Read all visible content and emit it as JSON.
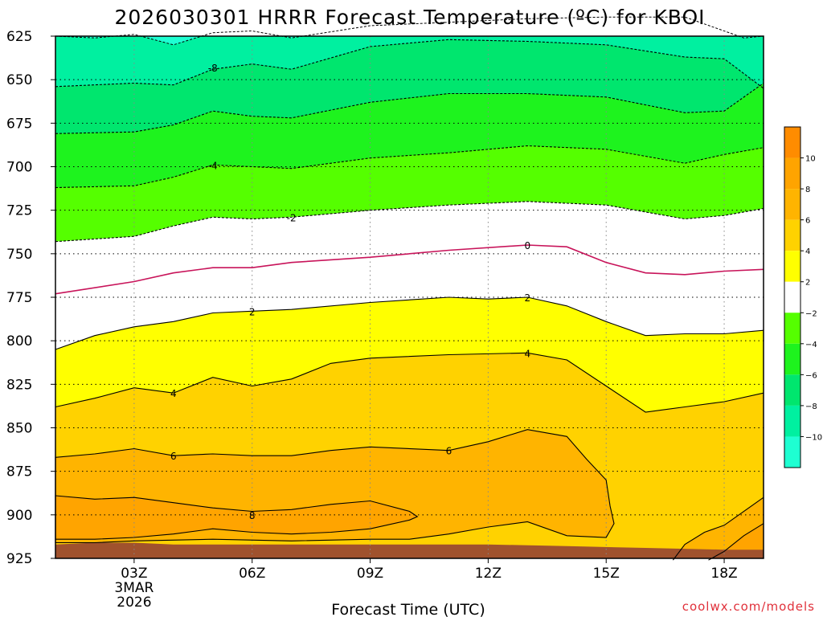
{
  "chart_data": {
    "type": "heatmap",
    "title": "2026030301 HRRR Forecast Temperature (ºC) for KBOI",
    "xlabel": "Forecast Time (UTC)",
    "ylabel": "",
    "x_ticks": [
      {
        "hour": 3,
        "label": "03Z",
        "sub": [
          "3MAR",
          "2026"
        ]
      },
      {
        "hour": 6,
        "label": "06Z"
      },
      {
        "hour": 9,
        "label": "09Z"
      },
      {
        "hour": 12,
        "label": "12Z"
      },
      {
        "hour": 15,
        "label": "15Z"
      },
      {
        "hour": 18,
        "label": "18Z"
      }
    ],
    "xlim": [
      1,
      19
    ],
    "y_ticks": [
      625,
      650,
      675,
      700,
      725,
      750,
      775,
      800,
      825,
      850,
      875,
      900,
      925
    ],
    "ylim": [
      925,
      625
    ],
    "ylog": false,
    "grid": true,
    "colorbar": {
      "ticks": [
        "10",
        "8",
        "6",
        "4",
        "2",
        "-2",
        "-4",
        "-6",
        "-8",
        "-10"
      ],
      "bands": [
        {
          "range": [
            10,
            12
          ],
          "color": "#ff8c00"
        },
        {
          "range": [
            8,
            10
          ],
          "color": "#ffa400"
        },
        {
          "range": [
            6,
            8
          ],
          "color": "#ffb400"
        },
        {
          "range": [
            4,
            6
          ],
          "color": "#ffd200"
        },
        {
          "range": [
            2,
            4
          ],
          "color": "#ffff00"
        },
        {
          "range": [
            -2,
            2
          ],
          "color": "#ffffff"
        },
        {
          "range": [
            -4,
            -2
          ],
          "color": "#55ff00"
        },
        {
          "range": [
            -6,
            -4
          ],
          "color": "#1ef31e"
        },
        {
          "range": [
            -8,
            -6
          ],
          "color": "#00e66e"
        },
        {
          "range": [
            -10,
            -8
          ],
          "color": "#00f0a0"
        },
        {
          "range": [
            -12,
            -10
          ],
          "color": "#1effd2"
        }
      ]
    },
    "terrain_color": "#a0522d",
    "series": [
      {
        "name": "-10",
        "type": "contour",
        "points": [
          [
            1,
            625
          ],
          [
            2,
            626
          ],
          [
            3,
            624
          ],
          [
            4,
            630
          ],
          [
            5,
            623
          ],
          [
            6,
            622
          ],
          [
            7,
            626
          ],
          [
            9,
            619
          ],
          [
            11,
            617
          ],
          [
            13,
            615
          ],
          [
            15,
            614
          ],
          [
            17,
            614
          ],
          [
            18.5,
            626
          ],
          [
            19,
            625
          ]
        ]
      },
      {
        "name": "-8",
        "type": "contour",
        "color": "#000000",
        "dash": true,
        "points": [
          [
            1,
            654
          ],
          [
            3,
            652
          ],
          [
            4,
            653
          ],
          [
            5,
            644
          ],
          [
            6,
            641
          ],
          [
            7,
            644
          ],
          [
            9,
            631
          ],
          [
            11,
            627
          ],
          [
            13,
            628
          ],
          [
            15,
            630
          ],
          [
            17,
            637
          ],
          [
            18,
            638
          ],
          [
            19,
            655
          ]
        ]
      },
      {
        "name": "-6",
        "type": "contour",
        "color": "#000000",
        "dash": true,
        "points": [
          [
            1,
            681
          ],
          [
            3,
            680
          ],
          [
            4,
            676
          ],
          [
            5,
            668
          ],
          [
            6,
            671
          ],
          [
            7,
            672
          ],
          [
            9,
            663
          ],
          [
            11,
            658
          ],
          [
            13,
            658
          ],
          [
            15,
            660
          ],
          [
            17,
            669
          ],
          [
            18,
            668
          ],
          [
            19,
            652
          ]
        ]
      },
      {
        "name": "-4",
        "type": "contour",
        "color": "#000000",
        "dash": true,
        "points": [
          [
            1,
            712
          ],
          [
            3,
            711
          ],
          [
            4,
            706
          ],
          [
            5,
            699
          ],
          [
            6,
            700
          ],
          [
            7,
            701
          ],
          [
            9,
            695
          ],
          [
            11,
            692
          ],
          [
            13,
            688
          ],
          [
            15,
            690
          ],
          [
            17,
            698
          ],
          [
            18,
            693
          ],
          [
            19,
            689
          ]
        ]
      },
      {
        "name": "-2",
        "type": "contour",
        "color": "#000000",
        "dash": true,
        "points": [
          [
            1,
            743
          ],
          [
            3,
            740
          ],
          [
            4,
            734
          ],
          [
            5,
            729
          ],
          [
            6,
            730
          ],
          [
            7,
            729
          ],
          [
            9,
            725
          ],
          [
            11,
            722
          ],
          [
            13,
            720
          ],
          [
            15,
            722
          ],
          [
            17,
            730
          ],
          [
            18,
            728
          ],
          [
            19,
            724
          ]
        ]
      },
      {
        "name": "0",
        "type": "contour",
        "color": "#c8145a",
        "points": [
          [
            1,
            773
          ],
          [
            3,
            766
          ],
          [
            4,
            761
          ],
          [
            5,
            758
          ],
          [
            6,
            758
          ],
          [
            7,
            755
          ],
          [
            9,
            752
          ],
          [
            11,
            748
          ],
          [
            13,
            745
          ],
          [
            14,
            746
          ],
          [
            15,
            755
          ],
          [
            16,
            761
          ],
          [
            17,
            762
          ],
          [
            18,
            760
          ],
          [
            19,
            759
          ]
        ]
      },
      {
        "name": "2",
        "type": "contour",
        "color": "#000000",
        "points": [
          [
            1,
            805
          ],
          [
            2,
            797
          ],
          [
            3,
            792
          ],
          [
            4,
            789
          ],
          [
            5,
            784
          ],
          [
            6,
            783
          ],
          [
            7,
            782
          ],
          [
            9,
            778
          ],
          [
            11,
            775
          ],
          [
            12,
            776
          ],
          [
            13,
            775
          ],
          [
            14,
            780
          ],
          [
            15,
            789
          ],
          [
            16,
            797
          ],
          [
            17,
            796
          ],
          [
            18,
            796
          ],
          [
            19,
            794
          ]
        ]
      },
      {
        "name": "4",
        "type": "contour",
        "color": "#000000",
        "points": [
          [
            1,
            838
          ],
          [
            2,
            833
          ],
          [
            3,
            827
          ],
          [
            4,
            830
          ],
          [
            5,
            821
          ],
          [
            6,
            826
          ],
          [
            7,
            822
          ],
          [
            8,
            813
          ],
          [
            9,
            810
          ],
          [
            11,
            808
          ],
          [
            13,
            807
          ],
          [
            14,
            811
          ],
          [
            15,
            826
          ],
          [
            16,
            841
          ],
          [
            17,
            838
          ],
          [
            18,
            835
          ],
          [
            19,
            830
          ]
        ]
      },
      {
        "name": "6",
        "type": "contour",
        "color": "#000000",
        "points": [
          [
            1,
            867
          ],
          [
            2,
            865
          ],
          [
            3,
            862
          ],
          [
            4,
            866
          ],
          [
            5,
            865
          ],
          [
            6,
            866
          ],
          [
            7,
            866
          ],
          [
            8,
            863
          ],
          [
            9,
            861
          ],
          [
            11,
            863
          ],
          [
            12,
            858
          ],
          [
            13,
            851
          ],
          [
            14,
            855
          ],
          [
            14.5,
            868
          ],
          [
            15,
            880
          ],
          [
            15.1,
            895
          ],
          [
            15.2,
            905
          ],
          [
            15,
            913
          ],
          [
            14,
            912
          ],
          [
            13,
            904
          ],
          [
            12,
            907
          ],
          [
            11,
            911
          ],
          [
            10,
            914
          ],
          [
            9,
            914
          ],
          [
            7,
            915
          ],
          [
            5,
            914
          ],
          [
            3,
            915
          ],
          [
            2,
            916
          ],
          [
            1,
            916
          ]
        ]
      },
      {
        "name": "8",
        "type": "contour",
        "color": "#000000",
        "points": [
          [
            1,
            889
          ],
          [
            2,
            891
          ],
          [
            3,
            890
          ],
          [
            4,
            893
          ],
          [
            5,
            896
          ],
          [
            6,
            898
          ],
          [
            7,
            897
          ],
          [
            8,
            894
          ],
          [
            9,
            892
          ],
          [
            10,
            898
          ],
          [
            10.2,
            901
          ],
          [
            10,
            903
          ],
          [
            9,
            908
          ],
          [
            8,
            910
          ],
          [
            7,
            911
          ],
          [
            6,
            910
          ],
          [
            5,
            908
          ],
          [
            4,
            911
          ],
          [
            3,
            913
          ],
          [
            2,
            914
          ],
          [
            1,
            914
          ]
        ]
      },
      {
        "name": "8 (east)",
        "type": "contour",
        "color": "#000000",
        "points": [
          [
            16.7,
            926
          ],
          [
            17,
            917
          ],
          [
            17.5,
            910
          ],
          [
            18,
            906
          ],
          [
            19,
            890
          ]
        ]
      },
      {
        "name": "10 (east)",
        "type": "contour",
        "color": "#000000",
        "points": [
          [
            17.6,
            926
          ],
          [
            18,
            921
          ],
          [
            18.5,
            912
          ],
          [
            19,
            905
          ]
        ]
      }
    ],
    "terrain": [
      [
        1,
        917
      ],
      [
        2,
        916
      ],
      [
        3,
        916
      ],
      [
        4,
        917
      ],
      [
        6,
        917
      ],
      [
        8,
        917
      ],
      [
        10,
        917
      ],
      [
        12,
        917
      ],
      [
        14,
        918
      ],
      [
        16,
        919
      ],
      [
        18,
        920
      ],
      [
        19,
        920
      ]
    ]
  },
  "credit": "coolwx.com/models"
}
